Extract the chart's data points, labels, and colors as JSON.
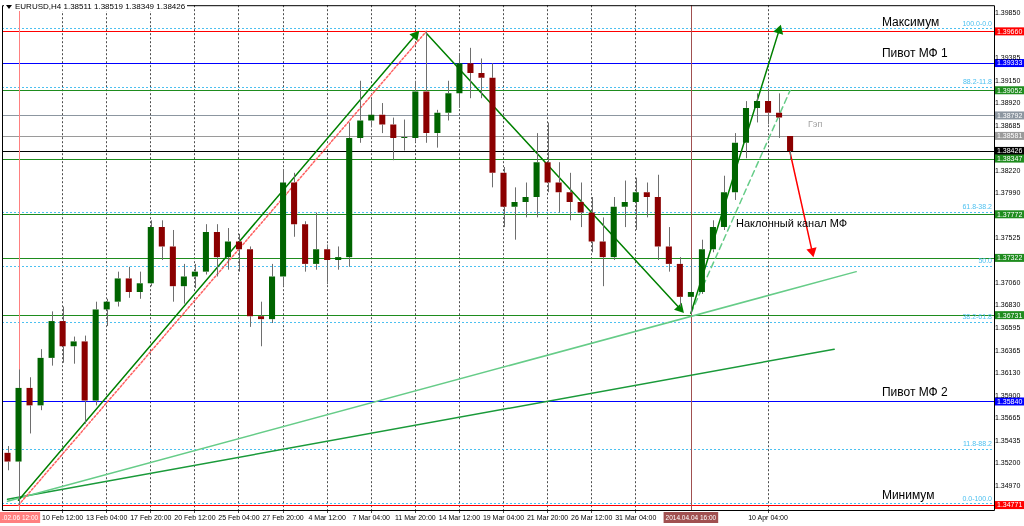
{
  "chart_data": {
    "type": "candlestick",
    "title": "EURUSD,H4 1.38511 1.38519 1.38349 1.38426",
    "categories": [
      null,
      ".02.06 12:00",
      null,
      null,
      null,
      "10 Feb 12:00",
      null,
      null,
      null,
      "13 Feb 04:00",
      null,
      null,
      null,
      "17 Feb 20:00",
      null,
      null,
      null,
      "20 Feb 12:00",
      null,
      null,
      null,
      "25 Feb 04:00",
      null,
      null,
      null,
      "27 Feb 20:00",
      null,
      null,
      null,
      "4 Mar 12:00",
      null,
      null,
      null,
      "7 Mar 04:00",
      null,
      null,
      null,
      "11 Mar 20:00",
      null,
      null,
      null,
      "14 Mar 12:00",
      null,
      null,
      null,
      "19 Mar 04:00",
      null,
      null,
      null,
      "21 Mar 20:00",
      null,
      null,
      null,
      "26 Mar 12:00",
      null,
      null,
      null,
      "31 Mar 04:00",
      null,
      null,
      null,
      null,
      "2014.04.04 16:00",
      null,
      null,
      null,
      null,
      null,
      null,
      "10 Apr 04:00",
      null,
      null,
      null,
      null,
      null,
      null,
      null,
      null,
      null,
      null,
      null,
      null,
      null,
      null,
      null,
      null,
      null,
      null,
      null,
      null
    ],
    "ohlc": [
      [
        1.3531,
        1.3538,
        1.3513,
        1.3522
      ],
      [
        1.3522,
        1.3617,
        1.3477,
        1.3598
      ],
      [
        1.3598,
        1.3609,
        1.3551,
        1.358
      ],
      [
        1.358,
        1.3638,
        1.3575,
        1.3629
      ],
      [
        1.3629,
        1.3677,
        1.3621,
        1.3667
      ],
      [
        1.3667,
        1.3682,
        1.3624,
        1.3641
      ],
      [
        1.3641,
        1.3651,
        1.3623,
        1.3646
      ],
      [
        1.3646,
        1.3652,
        1.3561,
        1.3585
      ],
      [
        1.3585,
        1.3687,
        1.358,
        1.3679
      ],
      [
        1.3679,
        1.369,
        1.3662,
        1.3687
      ],
      [
        1.3687,
        1.3718,
        1.3682,
        1.3711
      ],
      [
        1.3711,
        1.3723,
        1.3691,
        1.3697
      ],
      [
        1.3697,
        1.3718,
        1.369,
        1.3706
      ],
      [
        1.3706,
        1.3771,
        1.3703,
        1.3764
      ],
      [
        1.3764,
        1.3771,
        1.373,
        1.3744
      ],
      [
        1.3744,
        1.3761,
        1.3687,
        1.3703
      ],
      [
        1.3703,
        1.3726,
        1.3685,
        1.3713
      ],
      [
        1.3713,
        1.3726,
        1.3701,
        1.3718
      ],
      [
        1.3718,
        1.3767,
        1.3715,
        1.3759
      ],
      [
        1.3759,
        1.3767,
        1.3713,
        1.3733
      ],
      [
        1.3733,
        1.3763,
        1.372,
        1.3749
      ],
      [
        1.3749,
        1.3757,
        1.3718,
        1.3741
      ],
      [
        1.3741,
        1.3744,
        1.3661,
        1.3672
      ],
      [
        1.3672,
        1.3687,
        1.3641,
        1.3669
      ],
      [
        1.3669,
        1.3726,
        1.3665,
        1.3713
      ],
      [
        1.3713,
        1.3824,
        1.3703,
        1.381
      ],
      [
        1.381,
        1.382,
        1.3754,
        1.3767
      ],
      [
        1.3767,
        1.377,
        1.3718,
        1.3726
      ],
      [
        1.3726,
        1.3779,
        1.372,
        1.3741
      ],
      [
        1.3741,
        1.3746,
        1.3705,
        1.373
      ],
      [
        1.373,
        1.3744,
        1.372,
        1.3733
      ],
      [
        1.3733,
        1.3872,
        1.3723,
        1.3856
      ],
      [
        1.3856,
        1.3915,
        1.3851,
        1.3874
      ],
      [
        1.3874,
        1.3896,
        1.3867,
        1.388
      ],
      [
        1.388,
        1.3892,
        1.3861,
        1.387
      ],
      [
        1.387,
        1.3877,
        1.3833,
        1.3856
      ],
      [
        1.3856,
        1.3875,
        1.3843,
        1.3856
      ],
      [
        1.3856,
        1.3915,
        1.3852,
        1.3904
      ],
      [
        1.3904,
        1.3966,
        1.3851,
        1.3861
      ],
      [
        1.3861,
        1.3885,
        1.3846,
        1.3882
      ],
      [
        1.3882,
        1.3915,
        1.3874,
        1.3902
      ],
      [
        1.3902,
        1.3943,
        1.3887,
        1.3933
      ],
      [
        1.3933,
        1.3949,
        1.3897,
        1.3923
      ],
      [
        1.3923,
        1.3938,
        1.3897,
        1.3918
      ],
      [
        1.3918,
        1.3933,
        1.3805,
        1.382
      ],
      [
        1.382,
        1.3826,
        1.3764,
        1.3785
      ],
      [
        1.3785,
        1.3805,
        1.3751,
        1.379
      ],
      [
        1.379,
        1.381,
        1.3774,
        1.3795
      ],
      [
        1.3795,
        1.3861,
        1.3774,
        1.3831
      ],
      [
        1.3831,
        1.3872,
        1.38,
        1.381
      ],
      [
        1.381,
        1.3831,
        1.3779,
        1.38
      ],
      [
        1.38,
        1.382,
        1.3771,
        1.379
      ],
      [
        1.379,
        1.381,
        1.3764,
        1.3779
      ],
      [
        1.3779,
        1.3795,
        1.3738,
        1.3749
      ],
      [
        1.3749,
        1.3774,
        1.3703,
        1.3733
      ],
      [
        1.3733,
        1.3795,
        1.373,
        1.3785
      ],
      [
        1.3785,
        1.3812,
        1.3764,
        1.379
      ],
      [
        1.379,
        1.3815,
        1.3761,
        1.38
      ],
      [
        1.38,
        1.381,
        1.3774,
        1.3795
      ],
      [
        1.3795,
        1.3818,
        1.373,
        1.3744
      ],
      [
        1.3744,
        1.3764,
        1.3718,
        1.3726
      ],
      [
        1.3726,
        1.3733,
        1.3682,
        1.3692
      ],
      [
        1.3692,
        1.373,
        1.3674,
        1.3697
      ],
      [
        1.3697,
        1.3751,
        1.3695,
        1.3741
      ],
      [
        1.3741,
        1.3771,
        1.3738,
        1.3764
      ],
      [
        1.3764,
        1.3817,
        1.3761,
        1.38
      ],
      [
        1.38,
        1.3861,
        1.3792,
        1.3851
      ],
      [
        1.3851,
        1.3894,
        1.3835,
        1.3887
      ],
      [
        1.3887,
        1.3902,
        1.3872,
        1.3894
      ],
      [
        1.3894,
        1.3907,
        1.387,
        1.3882
      ],
      [
        1.3882,
        1.3902,
        1.3856,
        1.3877
      ],
      [
        1.3858,
        1.3858,
        1.3834,
        1.38426
      ],
      null,
      null,
      null,
      null,
      null,
      null,
      null,
      null,
      null,
      null,
      null,
      null,
      null,
      null,
      null,
      null,
      null,
      null
    ],
    "colors": [
      "#8b0000",
      "#006400",
      "#8b0000",
      "#006400",
      "#006400",
      "#8b0000",
      "#006400",
      "#8b0000",
      "#006400",
      "#006400",
      "#006400",
      "#8b0000",
      "#006400",
      "#006400",
      "#8b0000",
      "#8b0000",
      "#006400",
      "#006400",
      "#006400",
      "#8b0000",
      "#006400",
      "#8b0000",
      "#8b0000",
      "#8b0000",
      "#006400",
      "#006400",
      "#8b0000",
      "#8b0000",
      "#006400",
      "#8b0000",
      "#006400",
      "#006400",
      "#006400",
      "#006400",
      "#8b0000",
      "#8b0000",
      "#006400",
      "#006400",
      "#8b0000",
      "#006400",
      "#006400",
      "#006400",
      "#8b0000",
      "#8b0000",
      "#8b0000",
      "#8b0000",
      "#006400",
      "#006400",
      "#006400",
      "#8b0000",
      "#8b0000",
      "#8b0000",
      "#8b0000",
      "#8b0000",
      "#8b0000",
      "#006400",
      "#006400",
      "#006400",
      "#8b0000",
      "#8b0000",
      "#8b0000",
      "#8b0000",
      "#006400",
      "#006400",
      "#006400",
      "#006400",
      "#006400",
      "#006400",
      "#006400",
      "#8b0000",
      "#8b0000",
      "#8b0000",
      null,
      null,
      null,
      null,
      null,
      null,
      null,
      null,
      null,
      null,
      null,
      null,
      null,
      null,
      null,
      null,
      null,
      null
    ],
    "series": [
      {
        "type": "line",
        "color": "#008000",
        "line_style": "solid",
        "marker": "triangle",
        "values": [
          null,
          1.3482,
          null,
          null,
          null,
          null,
          null,
          null,
          null,
          null,
          null,
          null,
          null,
          null,
          null,
          null,
          null,
          null,
          null,
          null,
          null,
          null,
          null,
          null,
          null,
          null,
          null,
          null,
          null,
          null,
          null,
          null,
          null,
          null,
          null,
          null,
          null,
          1.3962,
          null,
          null,
          null,
          null,
          null,
          null,
          null,
          null,
          null,
          null,
          null,
          null,
          null,
          null,
          null,
          null,
          null,
          null,
          null,
          null,
          null,
          null,
          null,
          null,
          null,
          null,
          null,
          null,
          null,
          null,
          null,
          null,
          null,
          null,
          null,
          null,
          null,
          null,
          null,
          null,
          null,
          null,
          null,
          null,
          null,
          null,
          null,
          null,
          null,
          null,
          null,
          null
        ]
      },
      {
        "type": "line",
        "color": "#ff6060",
        "line_style": "dotted",
        "values": [
          null,
          1.3477,
          null,
          null,
          null,
          null,
          null,
          null,
          null,
          null,
          null,
          null,
          null,
          null,
          null,
          null,
          null,
          null,
          null,
          null,
          null,
          null,
          null,
          null,
          null,
          null,
          null,
          null,
          null,
          null,
          null,
          null,
          null,
          null,
          null,
          null,
          null,
          null,
          1.3966,
          null,
          null,
          null,
          null,
          null,
          null,
          null,
          null,
          null,
          null,
          null,
          null,
          null,
          null,
          null,
          null,
          null,
          null,
          null,
          null,
          null,
          null,
          null,
          null,
          null,
          null,
          null,
          null,
          null,
          null,
          null,
          null,
          null,
          null,
          null,
          null,
          null,
          null,
          null,
          null,
          null,
          null,
          null,
          null,
          null,
          null,
          null,
          null,
          null,
          null,
          null
        ]
      },
      {
        "type": "line",
        "color": "#008000",
        "line_style": "solid",
        "marker": "triangle",
        "values": [
          null,
          null,
          null,
          null,
          null,
          null,
          null,
          null,
          null,
          null,
          null,
          null,
          null,
          null,
          null,
          null,
          null,
          null,
          null,
          null,
          null,
          null,
          null,
          null,
          null,
          null,
          null,
          null,
          null,
          null,
          null,
          null,
          null,
          null,
          null,
          null,
          null,
          null,
          1.3964,
          null,
          null,
          null,
          null,
          null,
          null,
          null,
          null,
          null,
          null,
          null,
          null,
          null,
          null,
          null,
          null,
          null,
          null,
          null,
          null,
          null,
          null,
          1.368,
          null,
          null,
          null,
          null,
          null,
          null,
          null,
          null,
          null,
          null,
          null,
          null,
          null,
          null,
          null,
          null,
          null,
          null,
          null,
          null,
          null,
          null,
          null,
          null,
          null,
          null,
          null,
          null
        ]
      },
      {
        "type": "line",
        "color": "#008000",
        "line_style": "solid",
        "marker": "triangle",
        "values": [
          null,
          null,
          null,
          null,
          null,
          null,
          null,
          null,
          null,
          null,
          null,
          null,
          null,
          null,
          null,
          null,
          null,
          null,
          null,
          null,
          null,
          null,
          null,
          null,
          null,
          null,
          null,
          null,
          null,
          null,
          null,
          null,
          null,
          null,
          null,
          null,
          null,
          null,
          null,
          null,
          null,
          null,
          null,
          null,
          null,
          null,
          null,
          null,
          null,
          null,
          null,
          null,
          null,
          null,
          null,
          null,
          null,
          null,
          null,
          null,
          null,
          null,
          1.3675,
          null,
          null,
          null,
          null,
          null,
          null,
          null,
          1.3967,
          null,
          null,
          null,
          null,
          null,
          null,
          null,
          null,
          null,
          null,
          null,
          null,
          null,
          null,
          null,
          null,
          null,
          null,
          null
        ]
      },
      {
        "type": "line",
        "color": "#66cc88",
        "line_style": "dashed",
        "values": [
          null,
          null,
          null,
          null,
          null,
          null,
          null,
          null,
          null,
          null,
          null,
          null,
          null,
          null,
          null,
          null,
          null,
          null,
          null,
          null,
          null,
          null,
          null,
          null,
          null,
          null,
          null,
          null,
          null,
          null,
          null,
          null,
          null,
          null,
          null,
          null,
          null,
          null,
          null,
          null,
          null,
          null,
          null,
          null,
          null,
          null,
          null,
          null,
          null,
          null,
          null,
          null,
          null,
          null,
          null,
          null,
          null,
          null,
          null,
          null,
          null,
          null,
          1.3675,
          null,
          null,
          null,
          null,
          null,
          null,
          null,
          null,
          1.3905,
          null,
          null,
          null,
          null,
          null,
          null,
          null,
          null,
          null,
          null,
          null,
          null,
          null,
          null,
          null,
          null,
          null,
          null
        ]
      },
      {
        "type": "line",
        "color": "#66cc88",
        "line_style": "solid",
        "values": [
          1.3481,
          null,
          null,
          null,
          null,
          null,
          null,
          null,
          null,
          null,
          null,
          null,
          null,
          null,
          null,
          null,
          null,
          null,
          null,
          null,
          null,
          null,
          null,
          null,
          null,
          null,
          null,
          null,
          null,
          null,
          null,
          null,
          null,
          null,
          null,
          null,
          null,
          null,
          null,
          null,
          null,
          null,
          null,
          null,
          null,
          null,
          null,
          null,
          null,
          null,
          null,
          null,
          null,
          null,
          null,
          null,
          null,
          null,
          null,
          null,
          null,
          null,
          null,
          null,
          null,
          null,
          null,
          null,
          null,
          null,
          null,
          null,
          null,
          null,
          null,
          null,
          null,
          1.3718,
          null,
          null,
          null,
          null,
          null,
          null,
          null,
          null,
          null,
          null,
          null,
          null
        ]
      },
      {
        "type": "line",
        "color": "#1a9a3a",
        "line_style": "solid",
        "values": [
          1.3483,
          null,
          null,
          null,
          null,
          null,
          null,
          null,
          null,
          null,
          null,
          null,
          null,
          null,
          null,
          null,
          null,
          null,
          null,
          null,
          null,
          null,
          null,
          null,
          null,
          null,
          null,
          null,
          null,
          null,
          null,
          null,
          null,
          null,
          null,
          null,
          null,
          null,
          null,
          null,
          null,
          null,
          null,
          null,
          null,
          null,
          null,
          null,
          null,
          null,
          null,
          null,
          null,
          null,
          null,
          null,
          null,
          null,
          null,
          null,
          null,
          null,
          null,
          null,
          null,
          null,
          null,
          null,
          null,
          null,
          null,
          null,
          null,
          null,
          null,
          1.3638,
          null,
          null,
          null,
          null,
          null,
          null,
          null,
          null,
          null,
          null,
          null,
          null,
          null,
          null
        ]
      },
      {
        "type": "line",
        "color": "#ff0000",
        "line_style": "solid",
        "marker": "triangle",
        "values": [
          null,
          null,
          null,
          null,
          null,
          null,
          null,
          null,
          null,
          null,
          null,
          null,
          null,
          null,
          null,
          null,
          null,
          null,
          null,
          null,
          null,
          null,
          null,
          null,
          null,
          null,
          null,
          null,
          null,
          null,
          null,
          null,
          null,
          null,
          null,
          null,
          null,
          null,
          null,
          null,
          null,
          null,
          null,
          null,
          null,
          null,
          null,
          null,
          null,
          null,
          null,
          null,
          null,
          null,
          null,
          null,
          null,
          null,
          null,
          null,
          null,
          null,
          null,
          null,
          null,
          null,
          null,
          null,
          null,
          null,
          null,
          1.3841,
          null,
          1.3739,
          null,
          null,
          null,
          null,
          null,
          null,
          null,
          null,
          null,
          null,
          null,
          null,
          null,
          null,
          null,
          null
        ]
      }
    ],
    "ylim": [
      1.3472,
      1.3993
    ],
    "yticks": [
      {
        "value": 1.3985,
        "label": "1.39850"
      },
      {
        "value": 1.39385,
        "label": "1.39385"
      },
      {
        "value": 1.3915,
        "label": "1.39150"
      },
      {
        "value": 1.3892,
        "label": "1.38920"
      },
      {
        "value": 1.38685,
        "label": "1.38685"
      },
      {
        "value": 1.3822,
        "label": "1.38220"
      },
      {
        "value": 1.3799,
        "label": "1.37990"
      },
      {
        "value": 1.37525,
        "label": "1.37525"
      },
      {
        "value": 1.3706,
        "label": "1.37060"
      },
      {
        "value": 1.3683,
        "label": "1.36830"
      },
      {
        "value": 1.36595,
        "label": "1.36595"
      },
      {
        "value": 1.36365,
        "label": "1.36365"
      },
      {
        "value": 1.3613,
        "label": "1.36130"
      },
      {
        "value": 1.359,
        "label": "1.35900"
      },
      {
        "value": 1.35665,
        "label": "1.35665"
      },
      {
        "value": 1.35435,
        "label": "1.35435"
      },
      {
        "value": 1.352,
        "label": "1.35200"
      },
      {
        "value": 1.3497,
        "label": "1.34970"
      }
    ],
    "ref_lines": [
      {
        "axis": "y",
        "value": 1.3966,
        "label": "1.39660",
        "color": "#ff0000",
        "line_style": "solid"
      },
      {
        "axis": "y",
        "value": 1.39333,
        "label": "1.39333",
        "color": "#0000ff",
        "line_style": "solid"
      },
      {
        "axis": "y",
        "value": 1.39052,
        "label": "1.39052",
        "color": "#1e8c1e",
        "line_style": "solid"
      },
      {
        "axis": "y",
        "value": 1.38792,
        "label": "1.38792",
        "color": "#8c96a0",
        "line_style": "solid"
      },
      {
        "axis": "y",
        "value": 1.38581,
        "label": "1.38581",
        "color": "#9a9a9a",
        "line_style": "solid"
      },
      {
        "axis": "y",
        "value": 1.38426,
        "label": "1.38426",
        "color": "#000000",
        "line_style": "solid"
      },
      {
        "axis": "y",
        "value": 1.38347,
        "label": "1.38347",
        "color": "#1e8c1e",
        "line_style": "solid"
      },
      {
        "axis": "y",
        "value": 1.37772,
        "label": "1.37772",
        "color": "#1e8c1e",
        "line_style": "solid"
      },
      {
        "axis": "y",
        "value": 1.37322,
        "label": "1.37322",
        "color": "#1e8c1e",
        "line_style": "solid"
      },
      {
        "axis": "y",
        "value": 1.36731,
        "label": "1.36731",
        "color": "#1e8c1e",
        "line_style": "solid"
      },
      {
        "axis": "y",
        "value": 1.3584,
        "label": "1.35840",
        "color": "#0000ff",
        "line_style": "solid"
      },
      {
        "axis": "y",
        "value": 1.34771,
        "label": "1.34771",
        "color": "#ff0000",
        "line_style": "solid"
      },
      {
        "axis": "y",
        "value": 1.3969,
        "color": "#4cc0f0",
        "line_style": "dotted"
      },
      {
        "axis": "y",
        "value": 1.3909,
        "color": "#4cc0f0",
        "line_style": "dotted"
      },
      {
        "axis": "y",
        "value": 1.378,
        "color": "#4cc0f0",
        "line_style": "dotted"
      },
      {
        "axis": "y",
        "value": 1.3724,
        "color": "#4cc0f0",
        "line_style": "dotted"
      },
      {
        "axis": "y",
        "value": 1.3666,
        "color": "#4cc0f0",
        "line_style": "dotted"
      },
      {
        "axis": "y",
        "value": 1.3535,
        "color": "#4cc0f0",
        "line_style": "dotted"
      },
      {
        "axis": "y",
        "value": 1.3479,
        "color": "#4cc0f0",
        "line_style": "dotted"
      },
      {
        "axis": "x",
        "value": ".02.06 12:00",
        "color": "#ff8080",
        "line_style": "solid"
      },
      {
        "axis": "x",
        "value": "2014.04.04 16:00",
        "color": "#a05050",
        "line_style": "solid"
      }
    ],
    "annotations": [
      {
        "text": "Максимум",
        "y": 1.3966
      },
      {
        "text": "Пивот МФ 1",
        "y": 1.39333
      },
      {
        "text": "Пивот МФ 2",
        "y": 1.3584
      },
      {
        "text": "Минимум",
        "y": 1.34771
      },
      {
        "text": "100.0-0.0",
        "y": 1.3969
      },
      {
        "text": "88.2-11.8",
        "y": 1.3909
      },
      {
        "text": "61.8-38.2",
        "y": 1.378
      },
      {
        "text": "50.0",
        "y": 1.3724
      },
      {
        "text": "38.2-61.8",
        "y": 1.3666
      },
      {
        "text": "11.8-88.2",
        "y": 1.3535
      },
      {
        "text": "0.0-100.0",
        "y": 1.3479
      },
      "Гэп",
      "Наклонный канал МФ"
    ],
    "grid": "x",
    "legend": false
  }
}
